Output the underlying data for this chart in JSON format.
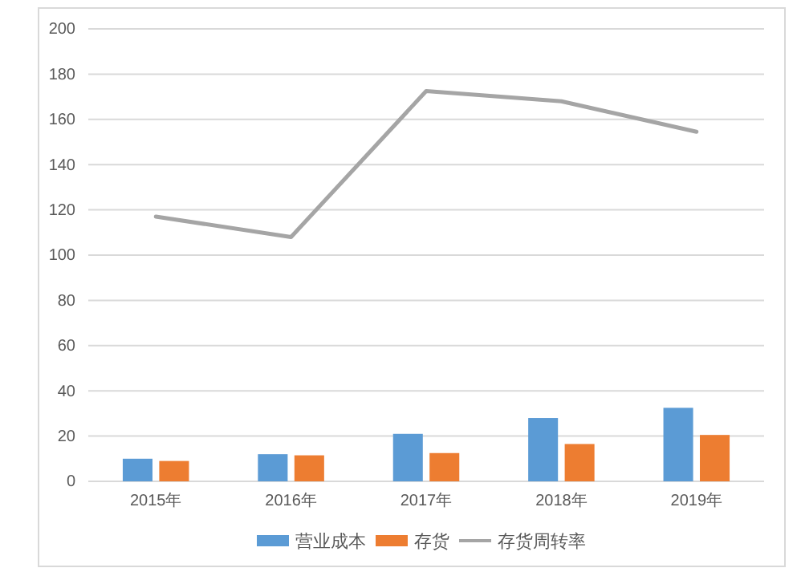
{
  "chart_data": {
    "type": "bar",
    "categories": [
      "2015年",
      "2016年",
      "2017年",
      "2018年",
      "2019年"
    ],
    "series": [
      {
        "name": "营业成本",
        "color": "#5b9bd5",
        "values": [
          10,
          12,
          21,
          28,
          32.5
        ]
      },
      {
        "name": "存货",
        "color": "#ed7d31",
        "values": [
          9,
          11.5,
          12.5,
          16.5,
          20.5
        ]
      },
      {
        "name": "存货周转率",
        "type": "line",
        "color": "#a5a5a5",
        "values": [
          117,
          108,
          172.5,
          168,
          154.5
        ]
      }
    ],
    "ylim": [
      0,
      200
    ],
    "yticks": [
      0,
      20,
      40,
      60,
      80,
      100,
      120,
      140,
      160,
      180,
      200
    ],
    "grid": "y",
    "legend": "bottom"
  }
}
